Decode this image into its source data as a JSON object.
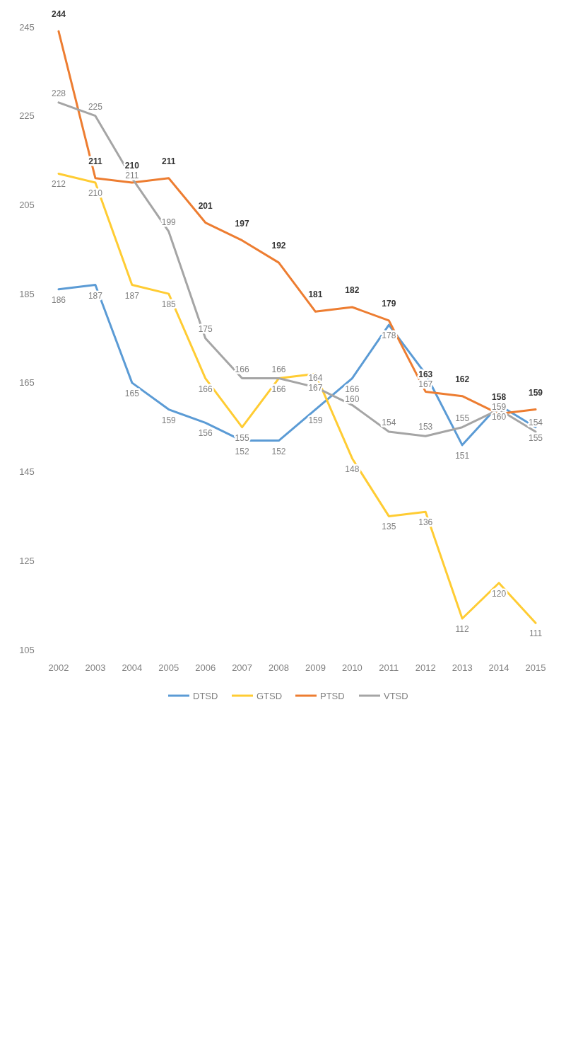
{
  "chart_data": {
    "type": "line",
    "categories": [
      "2002",
      "2003",
      "2004",
      "2005",
      "2006",
      "2007",
      "2008",
      "2009",
      "2010",
      "2011",
      "2012",
      "2013",
      "2014",
      "2015"
    ],
    "series": [
      {
        "name": "DTSD",
        "color": "#5b9bd5",
        "values": [
          186,
          187,
          165,
          159,
          156,
          152,
          152,
          159,
          166,
          178,
          167,
          151,
          160,
          155
        ]
      },
      {
        "name": "GTSD",
        "color": "#ffcc33",
        "values": [
          212,
          210,
          187,
          185,
          166,
          155,
          166,
          167,
          148,
          135,
          136,
          112,
          120,
          111
        ]
      },
      {
        "name": "PTSD",
        "color": "#ed7d31",
        "values": [
          244,
          211,
          210,
          211,
          201,
          197,
          192,
          181,
          182,
          179,
          163,
          162,
          158,
          159
        ]
      },
      {
        "name": "VTSD",
        "color": "#a5a5a5",
        "values": [
          228,
          225,
          211,
          199,
          175,
          166,
          166,
          164,
          160,
          154,
          153,
          155,
          159,
          154
        ]
      }
    ],
    "ylim": [
      105,
      245
    ],
    "yticks": [
      105,
      125,
      145,
      165,
      185,
      205,
      225,
      245
    ],
    "data_labels": true,
    "legend": "bottom",
    "grid": false,
    "marker": "none",
    "line_style": "solid"
  }
}
